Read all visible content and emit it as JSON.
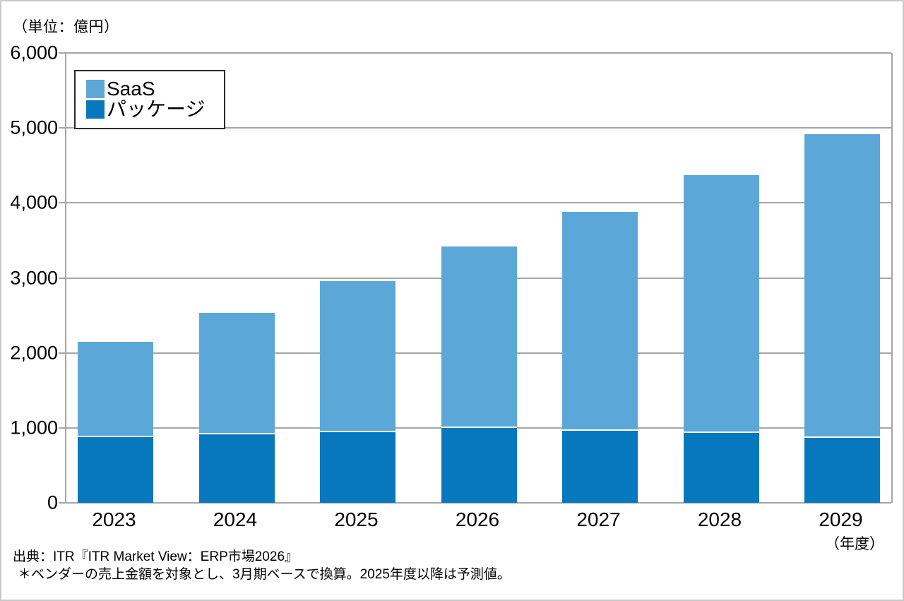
{
  "unit_label": "（単位：億円）",
  "x_axis_suffix": "（年度）",
  "footer": {
    "source_line": "出典：ITR『ITR Market View：ERP市場2026』",
    "note_line": "＊ベンダーの売上金額を対象とし、3月期ベースで換算。2025年度以降は予測値。"
  },
  "legend": [
    {
      "label": "SaaS",
      "color": "#5BA8D8"
    },
    {
      "label": "パッケージ",
      "color": "#0878BE"
    }
  ],
  "colors": {
    "saas": "#5BA8D8",
    "package": "#0878BE",
    "gridline": "#a6a6a6",
    "axis": "#a6a6a6",
    "legend_border": "#2a2a2a",
    "frame_border": "#c9c9c9",
    "separator": "#ffffff",
    "text": "#000000"
  },
  "chart_data": {
    "type": "bar",
    "stacked": true,
    "title": "",
    "xlabel": "年度",
    "ylabel": "億円",
    "categories": [
      "2023",
      "2024",
      "2025",
      "2026",
      "2027",
      "2028",
      "2029"
    ],
    "series": [
      {
        "name": "パッケージ",
        "color": "#0878BE",
        "values": [
          880,
          910,
          940,
          1000,
          965,
          930,
          870
        ]
      },
      {
        "name": "SaaS",
        "color": "#5BA8D8",
        "values": [
          1265,
          1625,
          2020,
          2420,
          2915,
          3445,
          4045
        ]
      }
    ],
    "totals": [
      2145,
      2535,
      2960,
      3420,
      3880,
      4375,
      4915
    ],
    "ylim": [
      0,
      6000
    ],
    "ytick_interval": 1000,
    "ytick_labels": [
      "0",
      "1,000",
      "2,000",
      "3,000",
      "4,000",
      "5,000",
      "6,000"
    ],
    "grid": true,
    "legend_position": "top-left-inside"
  }
}
